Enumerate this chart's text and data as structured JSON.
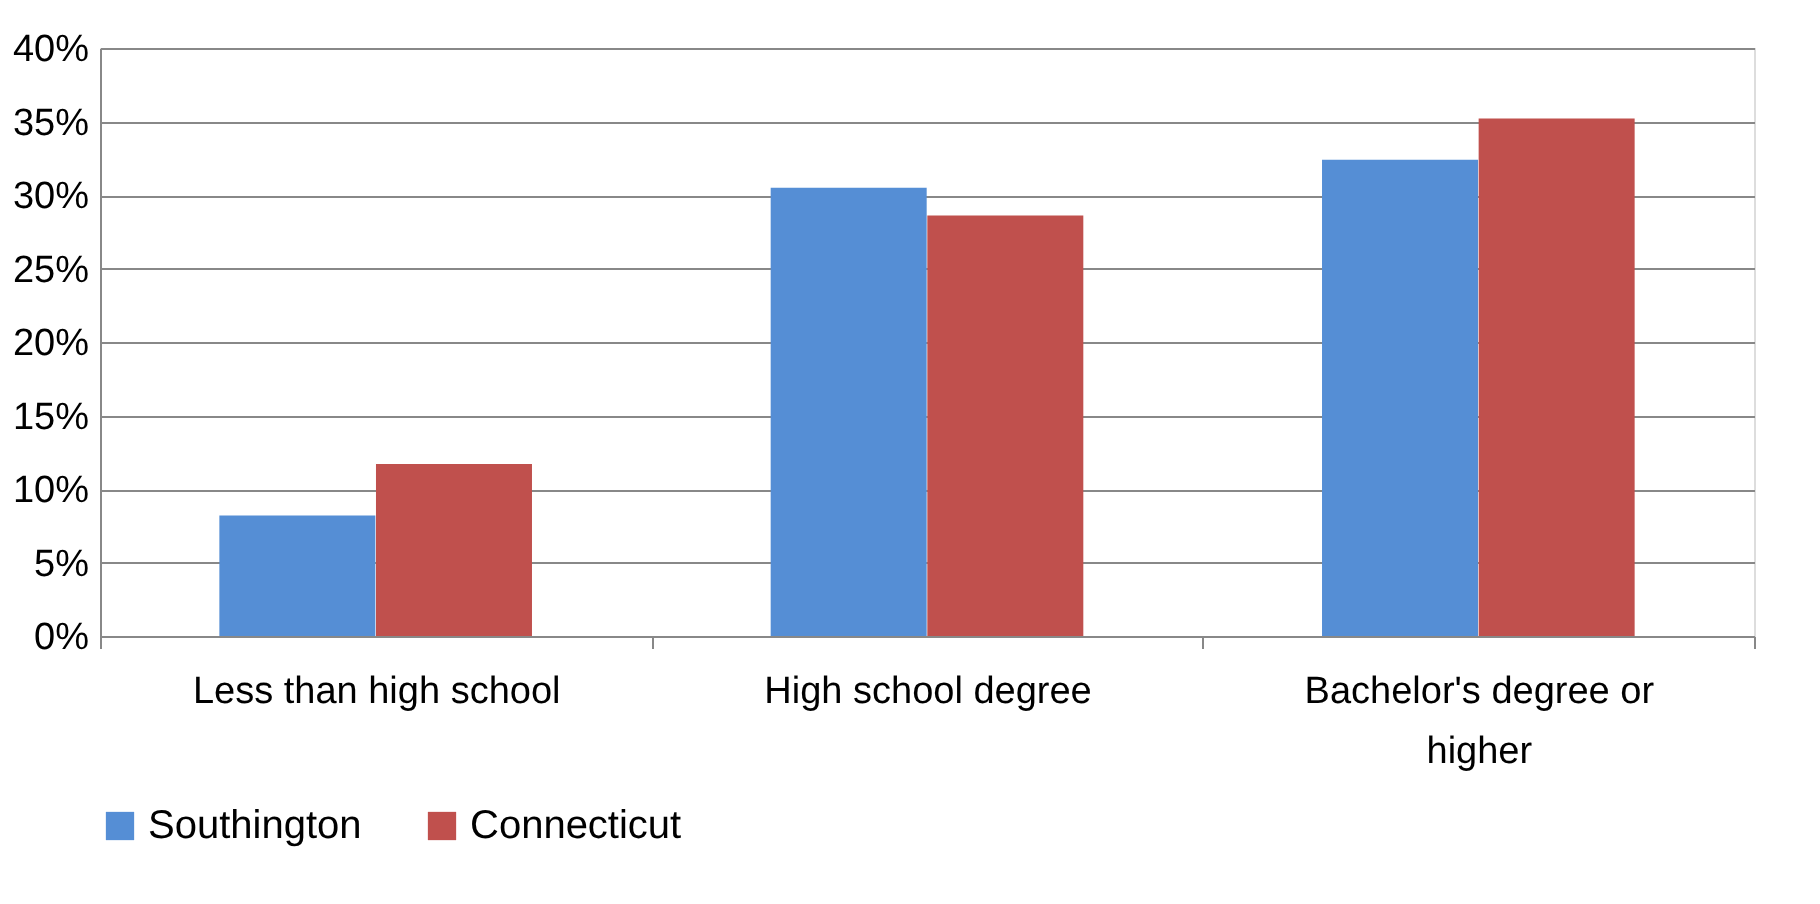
{
  "chart_data": {
    "type": "bar",
    "categories": [
      "Less than high school",
      "High school degree",
      "Bachelor's degree or higher"
    ],
    "series": [
      {
        "name": "Southington",
        "color": "#558ed5",
        "values": [
          8.2,
          30.5,
          32.4
        ]
      },
      {
        "name": "Connecticut",
        "color": "#c0504d",
        "values": [
          11.7,
          28.6,
          35.2
        ]
      }
    ],
    "ylim": [
      0,
      40
    ],
    "yticks": [
      {
        "value": 0,
        "label": "0%"
      },
      {
        "value": 5,
        "label": "5%"
      },
      {
        "value": 10,
        "label": "10%"
      },
      {
        "value": 15,
        "label": "15%"
      },
      {
        "value": 20,
        "label": "20%"
      },
      {
        "value": 25,
        "label": "25%"
      },
      {
        "value": 30,
        "label": "30%"
      },
      {
        "value": 35,
        "label": "35%"
      },
      {
        "value": 40,
        "label": "40%"
      }
    ],
    "grid": "y",
    "legend": "bottom"
  }
}
